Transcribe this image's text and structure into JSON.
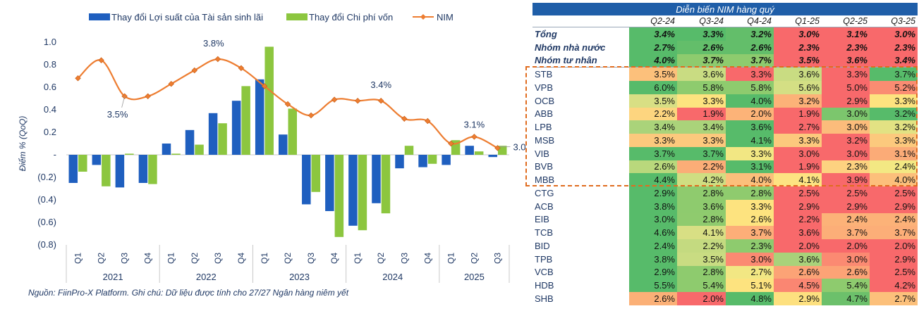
{
  "chart_data": {
    "type": "bar",
    "years": [
      "2021",
      "2022",
      "2023",
      "2024",
      "2025"
    ],
    "categories": [
      "Q1",
      "Q2",
      "Q3",
      "Q4",
      "Q1",
      "Q2",
      "Q3",
      "Q4",
      "Q1",
      "Q2",
      "Q3",
      "Q4",
      "Q1",
      "Q2",
      "Q3",
      "Q4",
      "Q1",
      "Q2",
      "Q3"
    ],
    "year_of_category": [
      0,
      0,
      0,
      0,
      1,
      1,
      1,
      1,
      2,
      2,
      2,
      2,
      3,
      3,
      3,
      3,
      4,
      4,
      4
    ],
    "series": [
      {
        "name": "Thay đổi Lợi suất của Tài sản sinh lãi",
        "kind": "bar",
        "color": "#1f5fbf",
        "values": [
          -0.25,
          -0.09,
          -0.29,
          -0.25,
          0.1,
          0.22,
          0.37,
          0.48,
          0.67,
          0.18,
          -0.44,
          -0.5,
          -0.63,
          -0.43,
          -0.12,
          -0.11,
          -0.09,
          0.08,
          -0.02
        ]
      },
      {
        "name": "Thay đổi Chi phí vốn",
        "kind": "bar",
        "color": "#8cc63f",
        "values": [
          -0.15,
          -0.28,
          0.01,
          -0.26,
          0.01,
          0.09,
          0.28,
          0.61,
          0.96,
          0.41,
          -0.33,
          -0.73,
          -0.67,
          -0.52,
          0.08,
          -0.08,
          0.13,
          0.03,
          0.08
        ]
      },
      {
        "name": "NIM",
        "kind": "line",
        "color": "#ed7d31",
        "values": [
          0.68,
          0.84,
          0.52,
          0.52,
          0.63,
          0.75,
          0.85,
          0.77,
          0.61,
          0.45,
          0.35,
          0.49,
          0.48,
          0.48,
          0.32,
          0.3,
          0.1,
          0.16,
          0.06
        ]
      }
    ],
    "annotations": [
      {
        "index": 2,
        "label": "3.5%"
      },
      {
        "index": 6,
        "label": "3.8%"
      },
      {
        "index": 13,
        "label": "3.4%"
      },
      {
        "index": 17,
        "label": "3.1%"
      },
      {
        "index": 18,
        "label": "3.0%"
      }
    ],
    "ylabel": "Điểm % (QoQ)",
    "ylim": [
      -0.8,
      1.0
    ],
    "yticks": [
      {
        "value": 1.0,
        "label": "1.0"
      },
      {
        "value": 0.8,
        "label": "0.8"
      },
      {
        "value": 0.6,
        "label": "0.6"
      },
      {
        "value": 0.4,
        "label": "0.4"
      },
      {
        "value": 0.2,
        "label": "0.2"
      },
      {
        "value": 0.0,
        "label": "-"
      },
      {
        "value": -0.2,
        "label": "(0.2)"
      },
      {
        "value": -0.4,
        "label": "(0.4)"
      },
      {
        "value": -0.6,
        "label": "(0.6)"
      },
      {
        "value": -0.8,
        "label": "(0.8)"
      }
    ],
    "legend_position": "top"
  },
  "source_note": "Nguồn: FiinPro-X Platform. Ghi chú: Dữ liệu được tính cho 27/27 Ngân hàng niêm yết",
  "table": {
    "title": "Diễn biến NIM hàng quý",
    "columns": [
      "Q2-24",
      "Q3-24",
      "Q4-24",
      "Q1-25",
      "Q2-25",
      "Q3-25"
    ],
    "rows": [
      {
        "name": "Tổng",
        "group": "aggregate",
        "values": [
          "3.4%",
          "3.3%",
          "3.2%",
          "3.0%",
          "3.1%",
          "3.0%"
        ],
        "colors": [
          "#57bb6a",
          "#57bb6a",
          "#63be6a",
          "#f8696b",
          "#f8696b",
          "#f8696b"
        ]
      },
      {
        "name": "Nhóm nhà nước",
        "group": "aggregate",
        "values": [
          "2.7%",
          "2.6%",
          "2.6%",
          "2.3%",
          "2.3%",
          "2.3%"
        ],
        "colors": [
          "#57bb6a",
          "#63be6a",
          "#63be6a",
          "#f8696b",
          "#f8696b",
          "#f8696b"
        ]
      },
      {
        "name": "Nhóm tư nhân",
        "group": "aggregate",
        "values": [
          "4.0%",
          "3.7%",
          "3.7%",
          "3.5%",
          "3.6%",
          "3.4%"
        ],
        "colors": [
          "#57bb6a",
          "#8ecb6e",
          "#8ecb6e",
          "#f8696b",
          "#f8696b",
          "#f8696b"
        ]
      },
      {
        "name": "STB",
        "group": "highlight",
        "values": [
          "3.5%",
          "3.6%",
          "3.3%",
          "3.6%",
          "3.3%",
          "3.7%"
        ],
        "colors": [
          "#fcc07b",
          "#c9dc82",
          "#f8696b",
          "#c9dc82",
          "#f8696b",
          "#57bb6a"
        ]
      },
      {
        "name": "VPB",
        "group": "highlight",
        "values": [
          "6.0%",
          "5.8%",
          "5.8%",
          "5.6%",
          "5.0%",
          "5.2%"
        ],
        "colors": [
          "#57bb6a",
          "#8ecb6e",
          "#8ecb6e",
          "#d4df84",
          "#f8696b",
          "#fa8c72"
        ]
      },
      {
        "name": "OCB",
        "group": "highlight",
        "values": [
          "3.5%",
          "3.3%",
          "4.0%",
          "3.2%",
          "2.9%",
          "3.3%"
        ],
        "colors": [
          "#d8df84",
          "#fde37f",
          "#57bb6a",
          "#fcb278",
          "#f8696b",
          "#fde37f"
        ]
      },
      {
        "name": "ABB",
        "group": "highlight",
        "values": [
          "2.2%",
          "1.9%",
          "2.0%",
          "1.9%",
          "3.0%",
          "3.2%"
        ],
        "colors": [
          "#fdd57f",
          "#f8696b",
          "#fcb378",
          "#f8696b",
          "#7cc66d",
          "#57bb6a"
        ]
      },
      {
        "name": "LPB",
        "group": "highlight",
        "values": [
          "3.4%",
          "3.4%",
          "3.6%",
          "2.7%",
          "3.0%",
          "3.2%"
        ],
        "colors": [
          "#aad37a",
          "#aad37a",
          "#57bb6a",
          "#f8696b",
          "#fcbc7b",
          "#e2e283"
        ]
      },
      {
        "name": "MSB",
        "group": "highlight",
        "values": [
          "3.3%",
          "3.3%",
          "4.1%",
          "3.3%",
          "3.2%",
          "3.3%"
        ],
        "colors": [
          "#fcc97d",
          "#fcc97d",
          "#57bb6a",
          "#fcc97d",
          "#f8696b",
          "#fcc97d"
        ]
      },
      {
        "name": "VIB",
        "group": "highlight",
        "values": [
          "3.7%",
          "3.7%",
          "3.3%",
          "3.0%",
          "3.0%",
          "3.1%"
        ],
        "colors": [
          "#57bb6a",
          "#57bb6a",
          "#f2e783",
          "#f8696b",
          "#f8696b",
          "#fbab77"
        ]
      },
      {
        "name": "BVB",
        "group": "highlight",
        "values": [
          "2.6%",
          "2.2%",
          "3.1%",
          "1.9%",
          "2.3%",
          "2.4%"
        ],
        "colors": [
          "#b9d87c",
          "#fbad77",
          "#57bb6a",
          "#f8696b",
          "#fdd280",
          "#f3e883"
        ]
      },
      {
        "name": "MBB",
        "group": "highlight",
        "values": [
          "4.4%",
          "4.2%",
          "4.0%",
          "4.1%",
          "3.9%",
          "4.0%"
        ],
        "colors": [
          "#57bb6a",
          "#cfde82",
          "#fcbf7b",
          "#fde382",
          "#f8696b",
          "#fcbf7b"
        ]
      },
      {
        "name": "CTG",
        "group": "bank",
        "values": [
          "2.9%",
          "2.8%",
          "2.8%",
          "2.5%",
          "2.5%",
          "2.5%"
        ],
        "colors": [
          "#57bb6a",
          "#8fcb6e",
          "#8fcb6e",
          "#f8696b",
          "#f8696b",
          "#f8696b"
        ]
      },
      {
        "name": "ACB",
        "group": "bank",
        "values": [
          "3.8%",
          "3.6%",
          "3.3%",
          "2.9%",
          "2.9%",
          "2.9%"
        ],
        "colors": [
          "#57bb6a",
          "#8ecb6e",
          "#fde37f",
          "#f8696b",
          "#f8696b",
          "#f8696b"
        ]
      },
      {
        "name": "EIB",
        "group": "bank",
        "values": [
          "3.0%",
          "2.8%",
          "2.6%",
          "2.2%",
          "2.4%",
          "2.4%"
        ],
        "colors": [
          "#57bb6a",
          "#8fcb6e",
          "#fde37f",
          "#f8696b",
          "#fcb278",
          "#fcb278"
        ]
      },
      {
        "name": "TCB",
        "group": "bank",
        "values": [
          "4.6%",
          "4.1%",
          "3.7%",
          "3.6%",
          "3.7%",
          "3.7%"
        ],
        "colors": [
          "#57bb6a",
          "#d8df84",
          "#fcae78",
          "#f8696b",
          "#fcae78",
          "#fcae78"
        ]
      },
      {
        "name": "BID",
        "group": "bank",
        "values": [
          "2.4%",
          "2.2%",
          "2.3%",
          "2.0%",
          "2.0%",
          "2.0%"
        ],
        "colors": [
          "#57bb6a",
          "#c4da80",
          "#8ecb6e",
          "#f8696b",
          "#f8696b",
          "#f8696b"
        ]
      },
      {
        "name": "TPB",
        "group": "bank",
        "values": [
          "3.8%",
          "3.5%",
          "3.0%",
          "3.6%",
          "3.0%",
          "2.9%"
        ],
        "colors": [
          "#57bb6a",
          "#c9dc82",
          "#fb8a72",
          "#a9d27a",
          "#fb8a72",
          "#f8696b"
        ]
      },
      {
        "name": "VCB",
        "group": "bank",
        "values": [
          "2.9%",
          "2.8%",
          "2.7%",
          "2.6%",
          "2.6%",
          "2.5%"
        ],
        "colors": [
          "#57bb6a",
          "#8ecb6e",
          "#f2e783",
          "#fca376",
          "#fca376",
          "#f8696b"
        ]
      },
      {
        "name": "HDB",
        "group": "bank",
        "values": [
          "5.5%",
          "5.4%",
          "5.1%",
          "4.5%",
          "5.4%",
          "4.2%"
        ],
        "colors": [
          "#57bb6a",
          "#8ecb6e",
          "#fde37f",
          "#fa8672",
          "#8ecb6e",
          "#f8696b"
        ]
      },
      {
        "name": "SHB",
        "group": "bank",
        "values": [
          "2.6%",
          "2.0%",
          "4.8%",
          "2.9%",
          "4.7%",
          "2.7%"
        ],
        "colors": [
          "#fbb077",
          "#f8696b",
          "#57bb6a",
          "#fde07f",
          "#6cc06b",
          "#fcc07b"
        ]
      }
    ]
  }
}
